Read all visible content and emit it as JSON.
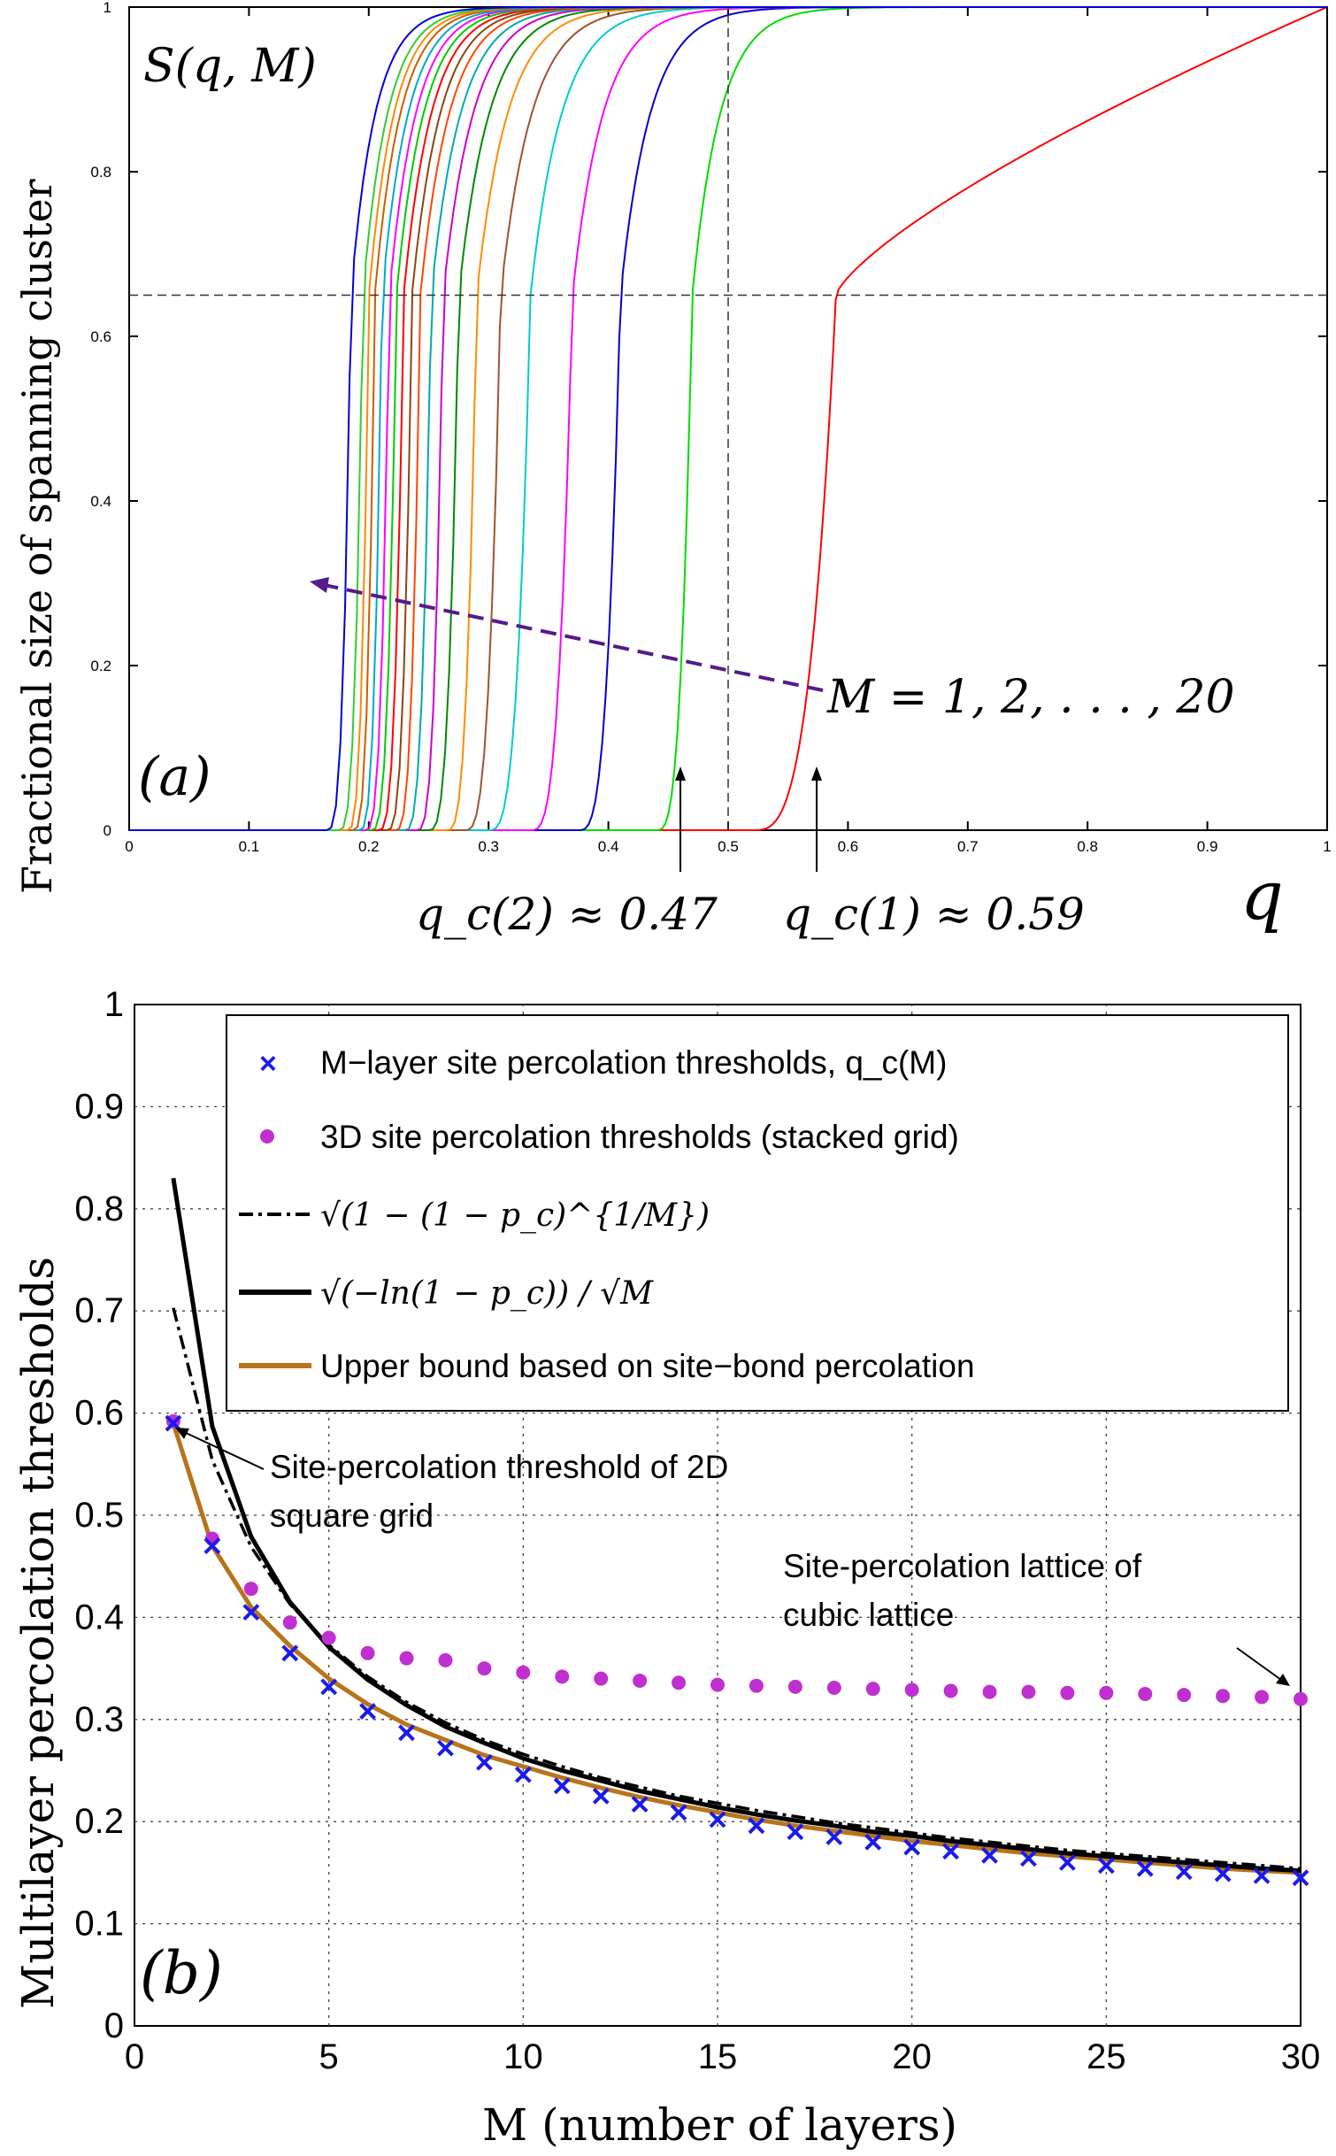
{
  "chart_data": [
    {
      "panel": "(a)",
      "type": "line",
      "ylabel": "Fractional size of spanning cluster",
      "xlabel": "q",
      "inner_label": "S(q, M)",
      "xlim": [
        0,
        1
      ],
      "ylim": [
        0,
        1
      ],
      "xticks": [
        "0",
        "0.1",
        "0.2",
        "0.3",
        "0.4",
        "0.5",
        "0.6",
        "0.7",
        "0.8",
        "0.9",
        "1"
      ],
      "yticks": [
        "0",
        "0.2",
        "0.4",
        "0.6",
        "0.8",
        "1"
      ],
      "hline_y": 0.65,
      "vline_x": 0.5,
      "series_label": "M = 1, 2, . . . , 20",
      "annotations": [
        {
          "text": "q_c(2) ≈ 0.47",
          "x": 0.47
        },
        {
          "text": "q_c(1) ≈ 0.59",
          "x": 0.59
        }
      ],
      "series": [
        {
          "name": "M=1",
          "color": "#ff0000",
          "qc": 0.59,
          "onset": 0.52
        },
        {
          "name": "M=2",
          "color": "#00dd00",
          "qc": 0.47,
          "onset": 0.44
        },
        {
          "name": "M=3",
          "color": "#0000cc",
          "qc": 0.41,
          "onset": 0.375
        },
        {
          "name": "M=4",
          "color": "#ff00ff",
          "qc": 0.37,
          "onset": 0.335
        },
        {
          "name": "M=5",
          "color": "#00cccc",
          "qc": 0.335,
          "onset": 0.3
        },
        {
          "name": "M=6",
          "color": "#a0522d",
          "qc": 0.31,
          "onset": 0.28
        },
        {
          "name": "M=7",
          "color": "#ff8c00",
          "qc": 0.29,
          "onset": 0.265
        },
        {
          "name": "M=8",
          "color": "#008800",
          "qc": 0.275,
          "onset": 0.25
        },
        {
          "name": "M=9",
          "color": "#cc00cc",
          "qc": 0.262,
          "onset": 0.24
        },
        {
          "name": "M=10",
          "color": "#00aaaa",
          "qc": 0.252,
          "onset": 0.23
        },
        {
          "name": "M=11",
          "color": "#ff4500",
          "qc": 0.243,
          "onset": 0.222
        },
        {
          "name": "M=12",
          "color": "#8b4513",
          "qc": 0.236,
          "onset": 0.215
        },
        {
          "name": "M=13",
          "color": "#ff0000",
          "qc": 0.229,
          "onset": 0.208
        },
        {
          "name": "M=14",
          "color": "#00cc00",
          "qc": 0.223,
          "onset": 0.202
        },
        {
          "name": "M=15",
          "color": "#ff00ff",
          "qc": 0.217,
          "onset": 0.197
        },
        {
          "name": "M=16",
          "color": "#00aacc",
          "qc": 0.211,
          "onset": 0.192
        },
        {
          "name": "M=17",
          "color": "#cd5c00",
          "qc": 0.205,
          "onset": 0.187
        },
        {
          "name": "M=18",
          "color": "#ff8800",
          "qc": 0.2,
          "onset": 0.182
        },
        {
          "name": "M=19",
          "color": "#33cc33",
          "qc": 0.195,
          "onset": 0.175
        },
        {
          "name": "M=20",
          "color": "#0000dd",
          "qc": 0.185,
          "onset": 0.165
        }
      ]
    },
    {
      "panel": "(b)",
      "type": "line",
      "ylabel": "Multilayer percolation thresholds",
      "xlabel": "M (number of layers)",
      "xlim": [
        0,
        30
      ],
      "ylim": [
        0,
        1
      ],
      "xticks": [
        "0",
        "5",
        "10",
        "15",
        "20",
        "25",
        "30"
      ],
      "yticks": [
        "0",
        "0.1",
        "0.2",
        "0.3",
        "0.4",
        "0.5",
        "0.6",
        "0.7",
        "0.8",
        "0.9",
        "1"
      ],
      "grid": true,
      "legend_position": "top",
      "legend": [
        "M−layer site percolation thresholds, q_c(M)",
        "3D site percolation thresholds (stacked grid)",
        "√(1 − (1 − p_c)^{1/M})",
        "√(−ln(1 − p_c)) / √M",
        "Upper bound based on site−bond percolation"
      ],
      "annotations": [
        "Site-percolation threshold of 2D",
        "square grid",
        "Site-percolation lattice of",
        "cubic lattice"
      ],
      "x": [
        1,
        2,
        3,
        4,
        5,
        6,
        7,
        8,
        9,
        10,
        11,
        12,
        13,
        14,
        15,
        16,
        17,
        18,
        19,
        20,
        21,
        22,
        23,
        24,
        25,
        26,
        27,
        28,
        29,
        30
      ],
      "series": [
        {
          "name": "M-layer site percolation thresholds",
          "marker": "x",
          "color": "#1a1aee",
          "values": [
            0.59,
            0.47,
            0.405,
            0.365,
            0.332,
            0.308,
            0.287,
            0.272,
            0.258,
            0.246,
            0.235,
            0.225,
            0.217,
            0.209,
            0.202,
            0.196,
            0.19,
            0.185,
            0.18,
            0.175,
            0.171,
            0.167,
            0.164,
            0.16,
            0.157,
            0.154,
            0.151,
            0.149,
            0.147,
            0.145
          ]
        },
        {
          "name": "3D site percolation thresholds (stacked grid)",
          "marker": "dot",
          "color": "#c030d0",
          "values": [
            0.592,
            0.477,
            0.428,
            0.395,
            0.38,
            0.365,
            0.36,
            0.358,
            0.35,
            0.346,
            0.342,
            0.34,
            0.338,
            0.336,
            0.334,
            0.333,
            0.332,
            0.331,
            0.33,
            0.329,
            0.328,
            0.327,
            0.327,
            0.326,
            0.326,
            0.325,
            0.324,
            0.323,
            0.322,
            0.32
          ]
        },
        {
          "name": "sqrt(1-(1-pc)^(1/M))",
          "style": "dashdot",
          "color": "#000000",
          "values": [
            0.703,
            0.554,
            0.469,
            0.413,
            0.373,
            0.342,
            0.317,
            0.297,
            0.28,
            0.266,
            0.254,
            0.243,
            0.234,
            0.225,
            0.218,
            0.211,
            0.205,
            0.199,
            0.194,
            0.189,
            0.184,
            0.18,
            0.176,
            0.172,
            0.169,
            0.166,
            0.163,
            0.16,
            0.157,
            0.154
          ]
        },
        {
          "name": "sqrt(-ln(1-pc))/sqrt(M)",
          "style": "solid",
          "color": "#000000",
          "values": [
            0.83,
            0.587,
            0.479,
            0.415,
            0.371,
            0.339,
            0.314,
            0.293,
            0.277,
            0.262,
            0.25,
            0.24,
            0.23,
            0.222,
            0.214,
            0.207,
            0.201,
            0.196,
            0.19,
            0.186,
            0.181,
            0.177,
            0.173,
            0.169,
            0.166,
            0.163,
            0.16,
            0.157,
            0.154,
            0.152
          ]
        },
        {
          "name": "Upper bound based on site-bond percolation",
          "style": "solid",
          "color": "#b8741a",
          "values": [
            0.59,
            0.47,
            0.41,
            0.372,
            0.34,
            0.315,
            0.295,
            0.28,
            0.265,
            0.254,
            0.243,
            0.233,
            0.224,
            0.216,
            0.209,
            0.202,
            0.196,
            0.191,
            0.186,
            0.181,
            0.177,
            0.173,
            0.169,
            0.166,
            0.163,
            0.16,
            0.157,
            0.154,
            0.152,
            0.15
          ]
        }
      ]
    }
  ]
}
